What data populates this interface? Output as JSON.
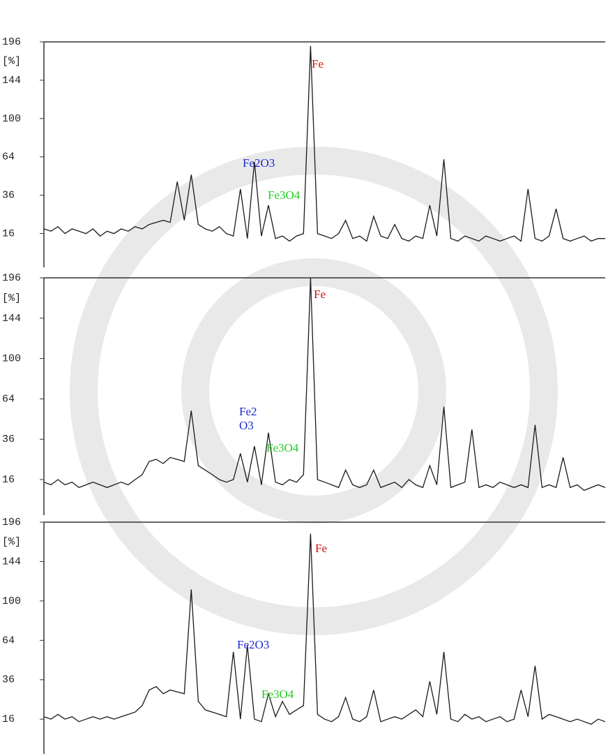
{
  "chart_data": [
    {
      "type": "line",
      "ylabel": "[%]",
      "yscale": "sqrt",
      "ylim": [
        5,
        196
      ],
      "yticks": [
        16,
        36,
        64,
        100,
        144,
        196
      ],
      "color": "#1a1a1a",
      "categories": [
        null,
        null,
        null,
        null,
        null,
        null,
        null,
        null,
        null,
        null,
        null,
        null,
        null,
        null,
        null,
        null,
        null,
        null,
        null,
        null,
        null,
        null,
        null,
        null,
        null,
        null,
        null,
        null,
        null,
        null,
        null,
        null,
        null,
        null,
        null,
        null,
        null,
        null,
        null,
        null,
        null,
        null,
        null,
        null,
        null,
        null,
        null,
        null,
        null,
        null,
        null,
        null,
        null,
        null,
        null,
        null,
        null,
        null,
        null,
        null,
        null,
        null,
        null,
        null,
        null,
        null,
        null,
        null,
        null,
        null,
        null,
        null,
        null,
        null,
        null,
        null,
        null,
        null,
        null,
        null,
        null
      ],
      "values": [
        18,
        17,
        19,
        16,
        18,
        17,
        16,
        18,
        15,
        17,
        16,
        18,
        17,
        19,
        18,
        20,
        21,
        22,
        21,
        45,
        22,
        50,
        20,
        18,
        17,
        19,
        16,
        15,
        40,
        14,
        60,
        15,
        30,
        14,
        15,
        13,
        15,
        16,
        190,
        16,
        15,
        14,
        16,
        22,
        14,
        15,
        13,
        24,
        15,
        14,
        20,
        14,
        13,
        15,
        14,
        30,
        15,
        62,
        14,
        13,
        15,
        14,
        13,
        15,
        14,
        13,
        14,
        15,
        13,
        40,
        14,
        13,
        15,
        28,
        14,
        13,
        14,
        15,
        13,
        14,
        14
      ],
      "annotations": [
        {
          "text": "Fe",
          "color": "#d01010"
        },
        {
          "text": "Fe2O3",
          "color": "#1a2ad0"
        },
        {
          "text": "Fe3O4",
          "color": "#22cc22"
        }
      ]
    },
    {
      "type": "line",
      "ylabel": "[%]",
      "yscale": "sqrt",
      "ylim": [
        5,
        196
      ],
      "yticks": [
        16,
        36,
        64,
        100,
        144,
        196
      ],
      "color": "#1a1a1a",
      "categories": [
        null,
        null,
        null,
        null,
        null,
        null,
        null,
        null,
        null,
        null,
        null,
        null,
        null,
        null,
        null,
        null,
        null,
        null,
        null,
        null,
        null,
        null,
        null,
        null,
        null,
        null,
        null,
        null,
        null,
        null,
        null,
        null,
        null,
        null,
        null,
        null,
        null,
        null,
        null,
        null,
        null,
        null,
        null,
        null,
        null,
        null,
        null,
        null,
        null,
        null,
        null,
        null,
        null,
        null,
        null,
        null,
        null,
        null,
        null,
        null,
        null,
        null,
        null,
        null,
        null,
        null,
        null,
        null,
        null,
        null,
        null,
        null,
        null,
        null,
        null,
        null,
        null,
        null,
        null,
        null,
        null
      ],
      "values": [
        15,
        14,
        16,
        14,
        15,
        13,
        14,
        15,
        14,
        13,
        14,
        15,
        14,
        16,
        18,
        24,
        25,
        23,
        26,
        25,
        24,
        55,
        22,
        20,
        18,
        16,
        15,
        16,
        28,
        15,
        32,
        14,
        40,
        15,
        14,
        16,
        15,
        18,
        196,
        16,
        15,
        14,
        13,
        20,
        14,
        13,
        14,
        20,
        13,
        14,
        15,
        13,
        16,
        14,
        13,
        22,
        14,
        58,
        13,
        14,
        15,
        42,
        13,
        14,
        13,
        15,
        14,
        13,
        14,
        13,
        45,
        13,
        14,
        13,
        26,
        13,
        14,
        12,
        13,
        14,
        13
      ],
      "annotations": [
        {
          "text": "Fe",
          "color": "#d01010"
        },
        {
          "text": "Fe2O3",
          "color": "#1a2ad0"
        },
        {
          "text": "Fe3O4",
          "color": "#22cc22"
        }
      ]
    },
    {
      "type": "line",
      "ylabel": "[%]",
      "yscale": "sqrt",
      "ylim": [
        5,
        196
      ],
      "yticks": [
        16,
        36,
        64,
        100,
        144,
        196
      ],
      "color": "#1a1a1a",
      "categories": [
        null,
        null,
        null,
        null,
        null,
        null,
        null,
        null,
        null,
        null,
        null,
        null,
        null,
        null,
        null,
        null,
        null,
        null,
        null,
        null,
        null,
        null,
        null,
        null,
        null,
        null,
        null,
        null,
        null,
        null,
        null,
        null,
        null,
        null,
        null,
        null,
        null,
        null,
        null,
        null,
        null,
        null,
        null,
        null,
        null,
        null,
        null,
        null,
        null,
        null,
        null,
        null,
        null,
        null,
        null,
        null,
        null,
        null,
        null,
        null,
        null,
        null,
        null,
        null,
        null,
        null,
        null,
        null,
        null,
        null,
        null,
        null,
        null,
        null,
        null,
        null,
        null,
        null,
        null,
        null,
        null
      ],
      "values": [
        17,
        16,
        18,
        16,
        17,
        15,
        16,
        17,
        16,
        17,
        16,
        17,
        18,
        19,
        22,
        30,
        32,
        28,
        30,
        29,
        28,
        112,
        24,
        20,
        19,
        18,
        17,
        55,
        16,
        60,
        16,
        15,
        28,
        17,
        24,
        18,
        20,
        22,
        180,
        18,
        16,
        15,
        17,
        26,
        16,
        15,
        17,
        30,
        15,
        16,
        17,
        16,
        18,
        20,
        17,
        35,
        18,
        55,
        16,
        15,
        18,
        16,
        17,
        15,
        16,
        17,
        15,
        16,
        30,
        17,
        45,
        16,
        18,
        17,
        16,
        15,
        16,
        15,
        14,
        16,
        15
      ],
      "annotations": [
        {
          "text": "Fe",
          "color": "#d01010"
        },
        {
          "text": "Fe2O3",
          "color": "#1a2ad0"
        },
        {
          "text": "Fe3O4",
          "color": "#22cc22"
        }
      ]
    }
  ]
}
